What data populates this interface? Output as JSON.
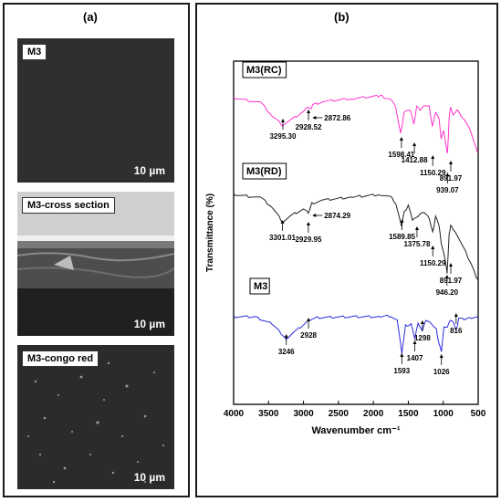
{
  "panel_a": {
    "label": "(a)",
    "images": [
      {
        "tag": "M3",
        "scale": "10 µm"
      },
      {
        "tag": "M3-cross section",
        "scale": "10 µm"
      },
      {
        "tag": "M3-congo red",
        "scale": "10 µm"
      }
    ]
  },
  "panel_b": {
    "label": "(b)"
  },
  "chart_data": {
    "type": "line",
    "xlabel": "Wavenumber cm⁻¹",
    "ylabel": "Transmittance (%)",
    "xlim": [
      4000,
      500
    ],
    "x_ticks": [
      "4000",
      "3500",
      "3000",
      "2500",
      "2000",
      "1500",
      "1000",
      "500"
    ],
    "series": [
      {
        "name": "M3(RC)",
        "color": "#ff33cc",
        "peaks": [
          "3295.30",
          "2928.52",
          "2872.86",
          "1598.41",
          "1412.88",
          "1150.29",
          "939.07",
          "891.97"
        ]
      },
      {
        "name": "M3(RD)",
        "color": "#222222",
        "peaks": [
          "3301.01",
          "2929.95",
          "2874.29",
          "1589.85",
          "1375.78",
          "1150.29",
          "946.20",
          "891.97"
        ]
      },
      {
        "name": "M3",
        "color": "#2b2bdd",
        "peaks": [
          "3246",
          "2928",
          "1593",
          "1407",
          "1298",
          "1026",
          "816"
        ]
      }
    ]
  }
}
